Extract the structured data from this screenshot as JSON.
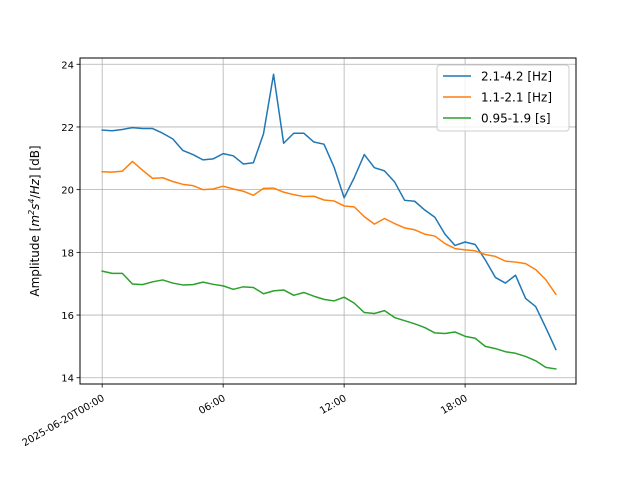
{
  "chart_data": {
    "type": "line",
    "title": "",
    "xlabel": "",
    "ylabel_parts": [
      "Amplitude [",
      "m",
      "2",
      "s",
      "4",
      "/",
      "Hz",
      "] [dB]"
    ],
    "ylim": [
      13.8,
      24.2
    ],
    "xlim_hours": [
      -1.1,
      23.5
    ],
    "grid": true,
    "legend_position": "top-right",
    "yticks": [
      14,
      16,
      18,
      20,
      22,
      24
    ],
    "ytick_labels": [
      "14",
      "16",
      "18",
      "20",
      "22",
      "24"
    ],
    "xticks_hours": [
      0,
      6,
      12,
      18
    ],
    "xtick_labels": [
      "2025-06-20T00:00",
      "06:00",
      "12:00",
      "18:00"
    ],
    "x_hours": [
      0.0,
      0.5,
      1.0,
      1.5,
      2.0,
      2.5,
      3.0,
      3.5,
      4.0,
      4.5,
      5.0,
      5.5,
      6.0,
      6.5,
      7.0,
      7.5,
      8.0,
      8.5,
      9.0,
      9.5,
      10.0,
      10.5,
      11.0,
      11.5,
      12.0,
      12.5,
      13.0,
      13.5,
      14.0,
      14.5,
      15.0,
      15.5,
      16.0,
      16.5,
      17.0,
      17.5,
      18.0,
      18.5,
      19.0,
      19.5,
      20.0,
      20.5,
      21.0,
      21.5,
      22.0,
      22.5
    ],
    "series": [
      {
        "name": "2.1-4.2 [Hz]",
        "color": "#1f77b4",
        "values": [
          21.9,
          21.88,
          21.92,
          21.98,
          21.95,
          21.95,
          21.8,
          21.62,
          21.25,
          21.12,
          20.95,
          20.98,
          21.15,
          21.08,
          20.82,
          20.86,
          21.78,
          23.68,
          21.48,
          21.8,
          21.8,
          21.52,
          21.45,
          20.72,
          19.74,
          20.38,
          21.12,
          20.7,
          20.6,
          20.25,
          19.66,
          19.63,
          19.35,
          19.12,
          18.58,
          18.22,
          18.33,
          18.25,
          17.76,
          17.2,
          17.02,
          17.27,
          16.53,
          16.27,
          15.6,
          14.9
        ]
      },
      {
        "name": "1.1-2.1 [Hz]",
        "color": "#ff7f0e",
        "values": [
          20.57,
          20.56,
          20.59,
          20.9,
          20.62,
          20.36,
          20.38,
          20.26,
          20.17,
          20.13,
          20.0,
          20.02,
          20.11,
          20.02,
          19.95,
          19.82,
          20.04,
          20.05,
          19.92,
          19.84,
          19.78,
          19.79,
          19.67,
          19.64,
          19.48,
          19.45,
          19.14,
          18.9,
          19.08,
          18.92,
          18.78,
          18.72,
          18.58,
          18.52,
          18.28,
          18.12,
          18.08,
          18.05,
          17.93,
          17.87,
          17.72,
          17.69,
          17.64,
          17.45,
          17.13,
          16.66
        ]
      },
      {
        "name": "0.95-1.9 [s]",
        "color": "#2ca02c",
        "values": [
          17.4,
          17.33,
          17.33,
          16.99,
          16.97,
          17.06,
          17.12,
          17.02,
          16.96,
          16.97,
          17.05,
          16.98,
          16.93,
          16.82,
          16.9,
          16.88,
          16.68,
          16.77,
          16.8,
          16.63,
          16.72,
          16.6,
          16.5,
          16.45,
          16.57,
          16.38,
          16.08,
          16.05,
          16.14,
          15.92,
          15.82,
          15.72,
          15.6,
          15.43,
          15.41,
          15.46,
          15.32,
          15.26,
          15.0,
          14.93,
          14.83,
          14.78,
          14.68,
          14.54,
          14.33,
          14.28
        ]
      }
    ]
  }
}
